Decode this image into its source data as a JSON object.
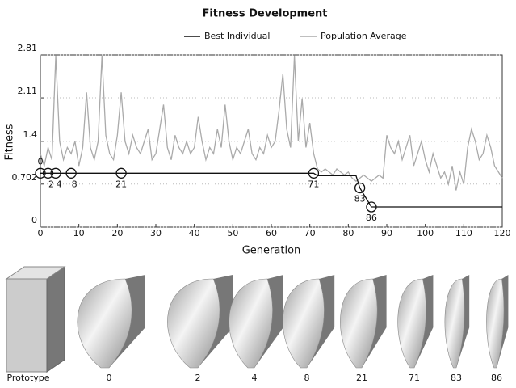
{
  "chart_data": {
    "type": "line",
    "title": "Fitness Development",
    "x_label": "Generation",
    "y_label": "Fitness",
    "xlim": [
      0,
      120
    ],
    "ylim": [
      0,
      2.81
    ],
    "xticks": [
      0,
      10,
      20,
      30,
      40,
      50,
      60,
      70,
      80,
      90,
      100,
      110,
      120
    ],
    "yticks": [
      0,
      0.702,
      1.4,
      2.11,
      2.81
    ],
    "series": [
      {
        "name": "Best Individual",
        "color": "#111111",
        "x": [
          0,
          71,
          72,
          82,
          83,
          86,
          120
        ],
        "values": [
          0.88,
          0.88,
          0.84,
          0.84,
          0.64,
          0.33,
          0.33
        ]
      },
      {
        "name": "Population Average",
        "color": "#aaaaaa",
        "x": [
          0,
          1,
          2,
          3,
          4,
          5,
          6,
          7,
          8,
          9,
          10,
          11,
          12,
          13,
          14,
          15,
          16,
          17,
          18,
          19,
          20,
          21,
          22,
          23,
          24,
          25,
          26,
          27,
          28,
          29,
          30,
          31,
          32,
          33,
          34,
          35,
          36,
          37,
          38,
          39,
          40,
          41,
          42,
          43,
          44,
          45,
          46,
          47,
          48,
          49,
          50,
          51,
          52,
          53,
          54,
          55,
          56,
          57,
          58,
          59,
          60,
          61,
          62,
          63,
          64,
          65,
          66,
          67,
          68,
          69,
          70,
          71,
          72,
          73,
          74,
          75,
          76,
          77,
          78,
          79,
          80,
          81,
          82,
          83,
          84,
          85,
          86,
          87,
          88,
          89,
          90,
          91,
          92,
          93,
          94,
          95,
          96,
          97,
          98,
          99,
          100,
          101,
          102,
          103,
          104,
          105,
          106,
          107,
          108,
          109,
          110,
          111,
          112,
          113,
          114,
          115,
          116,
          117,
          118,
          119,
          120
        ],
        "values": [
          1.2,
          1.0,
          1.3,
          1.1,
          2.8,
          1.4,
          1.1,
          1.3,
          1.2,
          1.4,
          1.0,
          1.3,
          2.2,
          1.3,
          1.1,
          1.4,
          2.8,
          1.5,
          1.2,
          1.1,
          1.5,
          2.2,
          1.4,
          1.2,
          1.5,
          1.3,
          1.2,
          1.4,
          1.6,
          1.1,
          1.2,
          1.6,
          2.0,
          1.3,
          1.1,
          1.5,
          1.3,
          1.2,
          1.4,
          1.2,
          1.3,
          1.8,
          1.4,
          1.1,
          1.3,
          1.2,
          1.6,
          1.3,
          2.0,
          1.4,
          1.1,
          1.3,
          1.2,
          1.4,
          1.6,
          1.2,
          1.1,
          1.3,
          1.2,
          1.5,
          1.3,
          1.4,
          1.9,
          2.5,
          1.6,
          1.3,
          2.8,
          1.4,
          2.1,
          1.3,
          1.7,
          1.2,
          0.95,
          0.9,
          0.95,
          0.9,
          0.85,
          0.95,
          0.9,
          0.85,
          0.9,
          0.8,
          0.75,
          0.8,
          0.85,
          0.8,
          0.75,
          0.8,
          0.85,
          0.8,
          1.5,
          1.3,
          1.2,
          1.4,
          1.1,
          1.3,
          1.5,
          1.0,
          1.2,
          1.4,
          1.1,
          0.9,
          1.2,
          1.0,
          0.8,
          0.9,
          0.7,
          1.0,
          0.6,
          0.9,
          0.7,
          1.3,
          1.6,
          1.4,
          1.1,
          1.2,
          1.5,
          1.3,
          1.0,
          0.9,
          0.8
        ]
      }
    ],
    "highlighted_generations": [
      0,
      2,
      4,
      8,
      21,
      71,
      83,
      86
    ],
    "gallery": [
      "Prototype",
      "0",
      "2",
      "4",
      "8",
      "21",
      "71",
      "83",
      "86"
    ]
  }
}
